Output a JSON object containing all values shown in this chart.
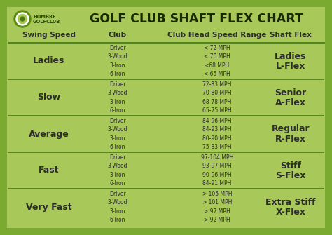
{
  "title": "GOLF CLUB SHAFT FLEX CHART",
  "bg_outer": "#7aaa30",
  "bg_inner": "#a8c85a",
  "line_color": "#4a7a10",
  "text_dark": "#2d2d2d",
  "header_col1": "Swing Speed",
  "header_col2": "Club",
  "header_col3": "Club Head Speed Range",
  "header_col4": "Shaft Flex",
  "logo_text1": "HOMBRE",
  "logo_text2": "GOLFCLUB",
  "rows": [
    {
      "swing": "Ladies",
      "clubs": [
        "Driver",
        "3-Wood",
        "3-Iron",
        "6-Iron"
      ],
      "speeds": [
        "< 72 MPH",
        "< 70 MPH",
        "<68 MPH",
        "< 65 MPH"
      ],
      "flex1": "Ladies",
      "flex2": "L-Flex"
    },
    {
      "swing": "Slow",
      "clubs": [
        "Driver",
        "3-Wood",
        "3-Iron",
        "6-Iron"
      ],
      "speeds": [
        "72-83 MPH",
        "70-80 MPH",
        "68-78 MPH",
        "65-75 MPH"
      ],
      "flex1": "Senior",
      "flex2": "A-Flex"
    },
    {
      "swing": "Average",
      "clubs": [
        "Driver",
        "3-Wood",
        "3-Iron",
        "6-Iron"
      ],
      "speeds": [
        "84-96 MPH",
        "84-93 MPH",
        "80-90 MPH",
        "75-83 MPH"
      ],
      "flex1": "Regular",
      "flex2": "R-Flex"
    },
    {
      "swing": "Fast",
      "clubs": [
        "Driver",
        "3-Wood",
        "3-Iron",
        "6-Iron"
      ],
      "speeds": [
        "97-104 MPH",
        "93-97 MPH",
        "90-96 MPH",
        "84-91 MPH"
      ],
      "flex1": "Stiff",
      "flex2": "S-Flex"
    },
    {
      "swing": "Very Fast",
      "clubs": [
        "Driver",
        "3-Wood",
        "3-Iron",
        "6-Iron"
      ],
      "speeds": [
        "> 105 MPH",
        "> 101 MPH",
        "> 97 MPH",
        "> 92 MPH"
      ],
      "flex1": "Extra Stiff",
      "flex2": "X-Flex"
    }
  ]
}
